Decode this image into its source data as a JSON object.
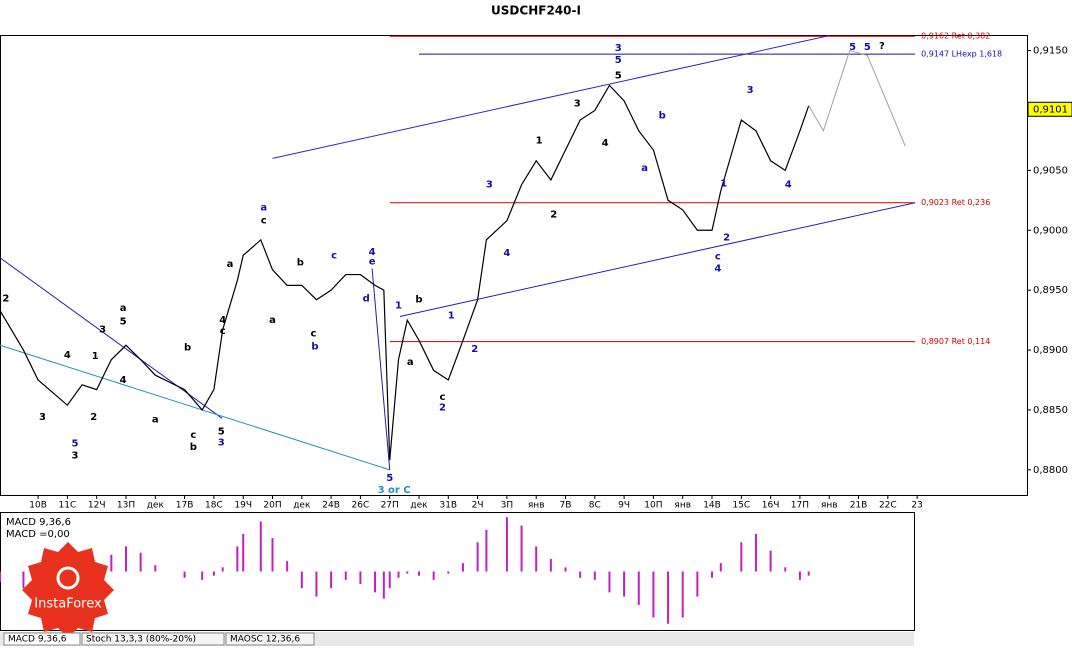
{
  "chart_data": {
    "type": "line",
    "title": "USDCHF240-I",
    "x": [
      -1.3,
      -0.5,
      0,
      1,
      1.5,
      2,
      2.5,
      3,
      3.5,
      4,
      5,
      5.6,
      6,
      6.3,
      6.8,
      7,
      7.6,
      8,
      8.5,
      9,
      9.5,
      10,
      10.5,
      11,
      11.5,
      11.8,
      12,
      12.3,
      12.6,
      13,
      13.5,
      14,
      14.5,
      15,
      15.3,
      16,
      16.5,
      17,
      17.5,
      18,
      18.5,
      19,
      19.5,
      20,
      20.5,
      21,
      21.5,
      22,
      22.5,
      23,
      23.3,
      24,
      24.5,
      25,
      25.5,
      26,
      26.3
    ],
    "series": [
      {
        "color": "#000000",
        "values": [
          0.8933,
          0.89,
          0.8875,
          0.8854,
          0.8871,
          0.8867,
          0.8892,
          0.8904,
          0.8892,
          0.8879,
          0.8867,
          0.885,
          0.8867,
          0.8917,
          0.8958,
          0.8979,
          0.8992,
          0.8967,
          0.8954,
          0.8954,
          0.8942,
          0.895,
          0.8963,
          0.8963,
          0.8954,
          0.895,
          0.8808,
          0.8892,
          0.8925,
          0.8908,
          0.8883,
          0.8875,
          0.8908,
          0.8942,
          0.8992,
          0.9008,
          0.9038,
          0.9058,
          0.9042,
          0.9067,
          0.9092,
          0.91,
          0.9121,
          0.9108,
          0.9083,
          0.9067,
          0.9025,
          0.9017,
          0.9,
          0.9,
          0.9033,
          0.9092,
          0.9083,
          0.9058,
          0.905,
          0.9083,
          0.9104
        ]
      }
    ],
    "projection": {
      "color": "#a0a0a0",
      "x": [
        26.3,
        26.8,
        27.7,
        28.3,
        29.6
      ],
      "values": [
        0.9104,
        0.9083,
        0.915,
        0.9146,
        0.907
      ]
    },
    "xlim": [
      -1.3,
      33.75
    ],
    "xticks": [
      {
        "value": 0,
        "label": "10В"
      },
      {
        "value": 1,
        "label": "11С"
      },
      {
        "value": 2,
        "label": "12Ч"
      },
      {
        "value": 3,
        "label": "13П"
      },
      {
        "value": 4,
        "label": "дек"
      },
      {
        "value": 5,
        "label": "17В"
      },
      {
        "value": 6,
        "label": "18С"
      },
      {
        "value": 7,
        "label": "19Ч"
      },
      {
        "value": 8,
        "label": "20П"
      },
      {
        "value": 9,
        "label": "дек"
      },
      {
        "value": 10,
        "label": "24В"
      },
      {
        "value": 11,
        "label": "26С"
      },
      {
        "value": 12,
        "label": "27П"
      },
      {
        "value": 13,
        "label": "дек"
      },
      {
        "value": 14,
        "label": "31В"
      },
      {
        "value": 15,
        "label": "2Ч"
      },
      {
        "value": 16,
        "label": "3П"
      },
      {
        "value": 17,
        "label": "янв"
      },
      {
        "value": 18,
        "label": "7В"
      },
      {
        "value": 19,
        "label": "8С"
      },
      {
        "value": 20,
        "label": "9Ч"
      },
      {
        "value": 21,
        "label": "10П"
      },
      {
        "value": 22,
        "label": "янв"
      },
      {
        "value": 23,
        "label": "14В"
      },
      {
        "value": 24,
        "label": "15С"
      },
      {
        "value": 25,
        "label": "16Ч"
      },
      {
        "value": 26,
        "label": "17П"
      },
      {
        "value": 27,
        "label": "янв"
      },
      {
        "value": 28,
        "label": "21В"
      },
      {
        "value": 29,
        "label": "22С"
      },
      {
        "value": 30,
        "label": "23"
      }
    ],
    "ylim": [
      0.8779,
      0.9163
    ],
    "yticks": [
      {
        "value": 0.88,
        "label": "0,8800"
      },
      {
        "value": 0.885,
        "label": "0,8850"
      },
      {
        "value": 0.89,
        "label": "0,8900"
      },
      {
        "value": 0.895,
        "label": "0,8950"
      },
      {
        "value": 0.9,
        "label": "0,9000"
      },
      {
        "value": 0.905,
        "label": "0,9050"
      },
      {
        "value": 0.91,
        "label": "0,9100"
      },
      {
        "value": 0.915,
        "label": "0,9150"
      }
    ],
    "current_price": {
      "value": 0.9101,
      "label": "0,9101",
      "color": "#ffff00"
    },
    "levels": [
      {
        "value": 0.9162,
        "start": 12,
        "end": 29.93,
        "label": "0,9162 Ret 0,382",
        "color": "#d00000"
      },
      {
        "value": 0.9147,
        "start": 13,
        "end": 29.93,
        "label": "0,9147 LHexp 1,618",
        "color": "#1010b0"
      },
      {
        "value": 0.9023,
        "start": 12,
        "end": 29.93,
        "label": "0,9023 Ret 0,236",
        "color": "#d00000"
      },
      {
        "value": 0.8907,
        "start": 12,
        "end": 29.93,
        "label": "0,8907 Ret 0,114",
        "color": "#d00000"
      }
    ],
    "trendlines": [
      {
        "x": [
          8,
          27
        ],
        "values": [
          0.906,
          0.91625
        ],
        "color": "#4020c0"
      },
      {
        "x": [
          12.35,
          29.93
        ],
        "values": [
          0.8928,
          0.9023
        ],
        "color": "#2020b0"
      },
      {
        "x": [
          -1.3,
          6.28
        ],
        "values": [
          0.8977,
          0.8843
        ],
        "color": "#2020b0"
      },
      {
        "x": [
          -1.3,
          12
        ],
        "values": [
          0.8904,
          0.88
        ],
        "color": "#2090c0"
      },
      {
        "x": [
          11.4,
          12
        ],
        "values": [
          0.8968,
          0.88
        ],
        "color": "#2020b0"
      }
    ],
    "wave_labels": [
      {
        "text": "3",
        "x": 19.8,
        "y": 0.9152,
        "color": "#1010b0"
      },
      {
        "text": "5",
        "x": 19.8,
        "y": 0.9142,
        "color": "#1010b0"
      },
      {
        "text": "5",
        "x": 19.8,
        "y": 0.9129,
        "color": "#000000"
      },
      {
        "text": "3",
        "x": 18.4,
        "y": 0.9106,
        "color": "#000000"
      },
      {
        "text": "4",
        "x": 19.35,
        "y": 0.9073,
        "color": "#000000"
      },
      {
        "text": "b",
        "x": 21.3,
        "y": 0.9096,
        "color": "#1010b0"
      },
      {
        "text": "a",
        "x": 20.7,
        "y": 0.9052,
        "color": "#1010b0"
      },
      {
        "text": "3",
        "x": 24.3,
        "y": 0.9117,
        "color": "#1010b0"
      },
      {
        "text": "1",
        "x": 23.4,
        "y": 0.9039,
        "color": "#1010b0"
      },
      {
        "text": "2",
        "x": 23.5,
        "y": 0.8994,
        "color": "#1010b0"
      },
      {
        "text": "c",
        "x": 23.2,
        "y": 0.8978,
        "color": "#1010b0"
      },
      {
        "text": "4",
        "x": 23.2,
        "y": 0.8968,
        "color": "#1010b0"
      },
      {
        "text": "4",
        "x": 25.6,
        "y": 0.9038,
        "color": "#1010b0"
      },
      {
        "text": "5",
        "x": 27.8,
        "y": 0.9153,
        "color": "#1010b0"
      },
      {
        "text": "5",
        "x": 28.3,
        "y": 0.9153,
        "color": "#1010b0"
      },
      {
        "text": "?",
        "x": 28.8,
        "y": 0.9154,
        "color": "#000000"
      },
      {
        "text": "3",
        "x": 15.4,
        "y": 0.9038,
        "color": "#1010b0"
      },
      {
        "text": "4",
        "x": 16,
        "y": 0.8981,
        "color": "#1010b0"
      },
      {
        "text": "1",
        "x": 17.1,
        "y": 0.9075,
        "color": "#000000"
      },
      {
        "text": "2",
        "x": 17.6,
        "y": 0.9013,
        "color": "#000000"
      },
      {
        "text": "1",
        "x": 12.3,
        "y": 0.8937,
        "color": "#1010b0"
      },
      {
        "text": "b",
        "x": 13,
        "y": 0.8942,
        "color": "#000000"
      },
      {
        "text": "a",
        "x": 12.7,
        "y": 0.889,
        "color": "#000000"
      },
      {
        "text": "1",
        "x": 14.1,
        "y": 0.8929,
        "color": "#1010b0"
      },
      {
        "text": "2",
        "x": 14.9,
        "y": 0.8901,
        "color": "#1010b0"
      },
      {
        "text": "c",
        "x": 13.8,
        "y": 0.8861,
        "color": "#000000"
      },
      {
        "text": "2",
        "x": 13.8,
        "y": 0.8852,
        "color": "#1010b0"
      },
      {
        "text": "5",
        "x": 12,
        "y": 0.8793,
        "color": "#1010b0"
      },
      {
        "text": "3 or C",
        "x": 12.15,
        "y": 0.8783,
        "color": "#2090c0"
      },
      {
        "text": "4",
        "x": 11.4,
        "y": 0.8982,
        "color": "#1010b0"
      },
      {
        "text": "e",
        "x": 11.4,
        "y": 0.8974,
        "color": "#1010b0"
      },
      {
        "text": "d",
        "x": 11.2,
        "y": 0.8943,
        "color": "#1010b0"
      },
      {
        "text": "c",
        "x": 10.1,
        "y": 0.8979,
        "color": "#1010b0"
      },
      {
        "text": "c",
        "x": 9.4,
        "y": 0.8914,
        "color": "#000000"
      },
      {
        "text": "b",
        "x": 9.45,
        "y": 0.8903,
        "color": "#1010b0"
      },
      {
        "text": "a",
        "x": 7.7,
        "y": 0.9019,
        "color": "#1010b0"
      },
      {
        "text": "c",
        "x": 7.7,
        "y": 0.9008,
        "color": "#000000"
      },
      {
        "text": "a",
        "x": 6.55,
        "y": 0.8972,
        "color": "#000000"
      },
      {
        "text": "b",
        "x": 8.95,
        "y": 0.8973,
        "color": "#000000"
      },
      {
        "text": "a",
        "x": 8,
        "y": 0.8925,
        "color": "#000000"
      },
      {
        "text": "4",
        "x": 6.3,
        "y": 0.8925,
        "color": "#000000"
      },
      {
        "text": "c",
        "x": 6.3,
        "y": 0.8916,
        "color": "#000000"
      },
      {
        "text": "5",
        "x": 6.25,
        "y": 0.8832,
        "color": "#000000"
      },
      {
        "text": "3",
        "x": 6.25,
        "y": 0.8823,
        "color": "#1010b0"
      },
      {
        "text": "b",
        "x": 5.1,
        "y": 0.8902,
        "color": "#000000"
      },
      {
        "text": "c",
        "x": 5.3,
        "y": 0.8829,
        "color": "#000000"
      },
      {
        "text": "b",
        "x": 5.3,
        "y": 0.8819,
        "color": "#000000"
      },
      {
        "text": "a",
        "x": 4,
        "y": 0.8842,
        "color": "#000000"
      },
      {
        "text": "3",
        "x": 0.15,
        "y": 0.8844,
        "color": "#000000"
      },
      {
        "text": "5",
        "x": 1.26,
        "y": 0.8822,
        "color": "#1010b0"
      },
      {
        "text": "3",
        "x": 1.26,
        "y": 0.8812,
        "color": "#000000"
      },
      {
        "text": "4",
        "x": 1,
        "y": 0.8896,
        "color": "#000000"
      },
      {
        "text": "2",
        "x": 1.9,
        "y": 0.8844,
        "color": "#000000"
      },
      {
        "text": "1",
        "x": 1.95,
        "y": 0.8895,
        "color": "#000000"
      },
      {
        "text": "3",
        "x": 2.2,
        "y": 0.8917,
        "color": "#000000"
      },
      {
        "text": "a",
        "x": 2.9,
        "y": 0.8935,
        "color": "#000000"
      },
      {
        "text": "5",
        "x": 2.9,
        "y": 0.8924,
        "color": "#000000"
      },
      {
        "text": "4",
        "x": 2.9,
        "y": 0.8875,
        "color": "#000000"
      },
      {
        "text": "2",
        "x": -1.1,
        "y": 0.8943,
        "color": "#000000"
      }
    ],
    "macd": {
      "label": "MACD 9,36,6",
      "value_text": "MACD =0,00",
      "color": "#c020c0",
      "ylim": [
        -0.0028,
        0.0028
      ],
      "values": [
        -0.0005,
        -0.0008,
        -0.0006,
        -0.0004,
        -0.0001,
        0.0003,
        0.0008,
        0.0012,
        0.0009,
        0.0003,
        -0.0003,
        -0.0004,
        -0.0002,
        0.0002,
        0.0012,
        0.0018,
        0.0024,
        0.0016,
        0.0005,
        -0.0008,
        -0.0012,
        -0.0008,
        -0.0004,
        -0.0006,
        -0.001,
        -0.0013,
        -0.0008,
        -0.0003,
        -0.0001,
        -0.0002,
        -0.0004,
        -0.0001,
        0.0004,
        0.0014,
        0.002,
        0.0026,
        0.0022,
        0.0012,
        0.0006,
        0.0002,
        -0.0003,
        -0.0004,
        -0.001,
        -0.0012,
        -0.0016,
        -0.0022,
        -0.0025,
        -0.0022,
        -0.0012,
        -0.0003,
        0.0004,
        0.0014,
        0.0018,
        0.001,
        0.0002,
        -0.0004,
        -0.0002
      ]
    },
    "tabs": [
      "MACD 9,36,6",
      "Stoch 13,3,3 (80%-20%)",
      "MAOSC 12,36,6"
    ],
    "logo": "InstaForex"
  }
}
